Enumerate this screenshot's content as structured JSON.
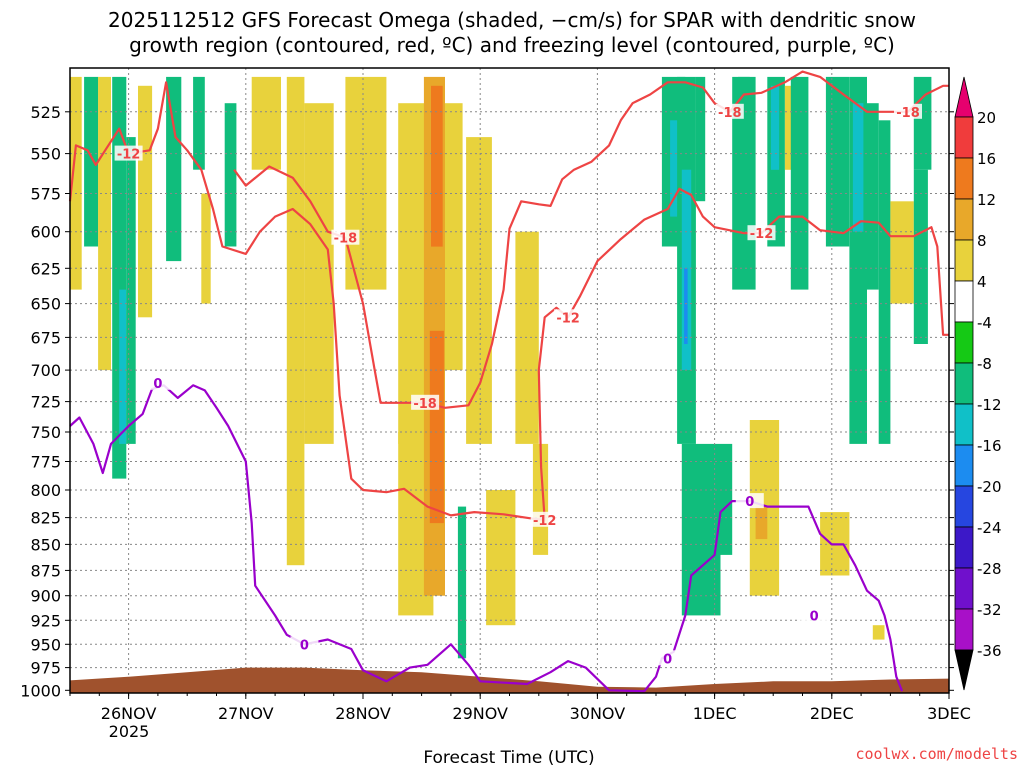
{
  "title": {
    "line1": "2025112512 GFS Forecast Omega (shaded, −cm/s) for SPAR with dendritic snow",
    "line2": "growth region (contoured, red, ºC) and freezing level (contoured, purple, ºC)"
  },
  "credit": "coolwx.com/modelts",
  "colors": {
    "dgz_contour": "#ee4444",
    "freezing_contour": "#9a00cc",
    "terrain": "#a0522d",
    "grid": "#888888"
  },
  "chart_data": {
    "type": "heatmap",
    "title": "2025112512 GFS Forecast Omega (shaded, −cm/s) for SPAR with dendritic snow growth region (contoured, red, ºC) and freezing level (contoured, purple, ºC)",
    "xlabel": "Forecast Time (UTC)",
    "ylabel": "",
    "x_ticks": [
      "26NOV",
      "27NOV",
      "28NOV",
      "29NOV",
      "30NOV",
      "1DEC",
      "2DEC",
      "3DEC"
    ],
    "x_sublabel": "2025",
    "xlim_days": [
      25.5,
      33.0
    ],
    "y_ticks": [
      525,
      550,
      575,
      600,
      625,
      650,
      675,
      700,
      725,
      750,
      775,
      800,
      825,
      850,
      875,
      900,
      925,
      950,
      975,
      1000
    ],
    "ylim_hpa": [
      1003,
      500
    ],
    "y_scale": "log-pressure",
    "grid": true,
    "colorbar": {
      "ticks": [
        20,
        16,
        12,
        8,
        4,
        -4,
        -8,
        -12,
        -16,
        -20,
        -24,
        -28,
        -32,
        -36
      ],
      "colors": [
        "#e6006e",
        "#f03c3c",
        "#ee7a1e",
        "#e8a82a",
        "#e8d23c",
        "#ffffff",
        "#15c915",
        "#10bd7c",
        "#10c0c8",
        "#1c8cf0",
        "#2646e0",
        "#3c18c8",
        "#7010cc",
        "#a810c8",
        "#a0a0a0",
        "#000000"
      ]
    },
    "shaded_regions": [
      {
        "omega": 6,
        "t0": 25.5,
        "t1": 25.6,
        "p0": 505,
        "p1": 640
      },
      {
        "omega": -10,
        "t0": 25.62,
        "t1": 25.74,
        "p0": 505,
        "p1": 610
      },
      {
        "omega": 6,
        "t0": 25.74,
        "t1": 25.85,
        "p0": 505,
        "p1": 700
      },
      {
        "omega": -8,
        "t0": 25.86,
        "t1": 25.98,
        "p0": 505,
        "p1": 790
      },
      {
        "omega": -14,
        "t0": 25.92,
        "t1": 25.98,
        "p0": 640,
        "p1": 760
      },
      {
        "omega": -10,
        "t0": 25.98,
        "t1": 26.06,
        "p0": 540,
        "p1": 760
      },
      {
        "omega": 6,
        "t0": 26.08,
        "t1": 26.2,
        "p0": 510,
        "p1": 660
      },
      {
        "omega": -10,
        "t0": 26.32,
        "t1": 26.45,
        "p0": 505,
        "p1": 620
      },
      {
        "omega": -8,
        "t0": 26.55,
        "t1": 26.65,
        "p0": 505,
        "p1": 560
      },
      {
        "omega": 6,
        "t0": 26.62,
        "t1": 26.7,
        "p0": 575,
        "p1": 650
      },
      {
        "omega": -8,
        "t0": 26.82,
        "t1": 26.92,
        "p0": 520,
        "p1": 610
      },
      {
        "omega": 6,
        "t0": 27.05,
        "t1": 27.3,
        "p0": 505,
        "p1": 560
      },
      {
        "omega": 6,
        "t0": 27.35,
        "t1": 27.5,
        "p0": 505,
        "p1": 870
      },
      {
        "omega": 6,
        "t0": 27.5,
        "t1": 27.75,
        "p0": 520,
        "p1": 760
      },
      {
        "omega": 6,
        "t0": 27.85,
        "t1": 28.2,
        "p0": 505,
        "p1": 640
      },
      {
        "omega": 6,
        "t0": 28.3,
        "t1": 28.55,
        "p0": 520,
        "p1": 760
      },
      {
        "omega": 6,
        "t0": 28.3,
        "t1": 28.6,
        "p0": 750,
        "p1": 920
      },
      {
        "omega": 8,
        "t0": 28.52,
        "t1": 28.7,
        "p0": 505,
        "p1": 900
      },
      {
        "omega": 12,
        "t0": 28.58,
        "t1": 28.68,
        "p0": 510,
        "p1": 610
      },
      {
        "omega": 12,
        "t0": 28.57,
        "t1": 28.69,
        "p0": 670,
        "p1": 830
      },
      {
        "omega": 6,
        "t0": 28.7,
        "t1": 28.85,
        "p0": 520,
        "p1": 700
      },
      {
        "omega": -10,
        "t0": 28.81,
        "t1": 28.88,
        "p0": 815,
        "p1": 965
      },
      {
        "omega": 6,
        "t0": 28.88,
        "t1": 29.1,
        "p0": 540,
        "p1": 760
      },
      {
        "omega": 6,
        "t0": 29.05,
        "t1": 29.3,
        "p0": 800,
        "p1": 930
      },
      {
        "omega": 6,
        "t0": 29.3,
        "t1": 29.5,
        "p0": 600,
        "p1": 760
      },
      {
        "omega": 6,
        "t0": 29.45,
        "t1": 29.58,
        "p0": 760,
        "p1": 860
      },
      {
        "omega": -8,
        "t0": 30.55,
        "t1": 30.75,
        "p0": 505,
        "p1": 610
      },
      {
        "omega": -12,
        "t0": 30.62,
        "t1": 30.72,
        "p0": 530,
        "p1": 590
      },
      {
        "omega": -10,
        "t0": 30.68,
        "t1": 30.84,
        "p0": 505,
        "p1": 760
      },
      {
        "omega": -14,
        "t0": 30.72,
        "t1": 30.8,
        "p0": 560,
        "p1": 700
      },
      {
        "omega": -16,
        "t0": 30.74,
        "t1": 30.77,
        "p0": 625,
        "p1": 680
      },
      {
        "omega": -10,
        "t0": 30.84,
        "t1": 30.92,
        "p0": 505,
        "p1": 580
      },
      {
        "omega": -8,
        "t0": 30.72,
        "t1": 31.05,
        "p0": 760,
        "p1": 920
      },
      {
        "omega": -10,
        "t0": 30.74,
        "t1": 30.84,
        "p0": 820,
        "p1": 860
      },
      {
        "omega": -8,
        "t0": 31.05,
        "t1": 31.15,
        "p0": 760,
        "p1": 860
      },
      {
        "omega": -8,
        "t0": 31.15,
        "t1": 31.35,
        "p0": 505,
        "p1": 640
      },
      {
        "omega": -10,
        "t0": 31.2,
        "t1": 31.3,
        "p0": 505,
        "p1": 560
      },
      {
        "omega": 6,
        "t0": 31.3,
        "t1": 31.55,
        "p0": 740,
        "p1": 900
      },
      {
        "omega": 8,
        "t0": 31.35,
        "t1": 31.45,
        "p0": 815,
        "p1": 845
      },
      {
        "omega": -10,
        "t0": 31.45,
        "t1": 31.6,
        "p0": 505,
        "p1": 610
      },
      {
        "omega": -14,
        "t0": 31.48,
        "t1": 31.55,
        "p0": 510,
        "p1": 560
      },
      {
        "omega": 6,
        "t0": 31.6,
        "t1": 31.7,
        "p0": 510,
        "p1": 560
      },
      {
        "omega": -8,
        "t0": 31.65,
        "t1": 31.8,
        "p0": 505,
        "p1": 640
      },
      {
        "omega": -8,
        "t0": 31.95,
        "t1": 32.15,
        "p0": 505,
        "p1": 610
      },
      {
        "omega": -10,
        "t0": 32.15,
        "t1": 32.3,
        "p0": 505,
        "p1": 760
      },
      {
        "omega": -14,
        "t0": 32.18,
        "t1": 32.27,
        "p0": 520,
        "p1": 600
      },
      {
        "omega": 6,
        "t0": 31.9,
        "t1": 32.15,
        "p0": 820,
        "p1": 880
      },
      {
        "omega": -8,
        "t0": 32.3,
        "t1": 32.4,
        "p0": 520,
        "p1": 640
      },
      {
        "omega": -8,
        "t0": 32.4,
        "t1": 32.5,
        "p0": 530,
        "p1": 760
      },
      {
        "omega": 6,
        "t0": 32.35,
        "t1": 32.45,
        "p0": 930,
        "p1": 945
      },
      {
        "omega": 6,
        "t0": 32.5,
        "t1": 32.7,
        "p0": 580,
        "p1": 650
      },
      {
        "omega": -10,
        "t0": 32.7,
        "t1": 32.85,
        "p0": 505,
        "p1": 560
      },
      {
        "omega": -8,
        "t0": 32.7,
        "t1": 32.82,
        "p0": 560,
        "p1": 680
      }
    ],
    "contours": [
      {
        "label": "-12",
        "color": "dgz",
        "label_points": [
          [
            26.0,
            550
          ],
          [
            29.55,
            827
          ],
          [
            29.75,
            660
          ],
          [
            31.4,
            601
          ]
        ],
        "points": [
          [
            25.5,
            580
          ],
          [
            25.55,
            545
          ],
          [
            25.65,
            548
          ],
          [
            25.72,
            557
          ],
          [
            25.8,
            548
          ],
          [
            25.92,
            535
          ],
          [
            26.0,
            550
          ],
          [
            26.18,
            548
          ],
          [
            26.25,
            535
          ],
          [
            26.32,
            508
          ],
          [
            26.4,
            540
          ],
          [
            26.5,
            548
          ],
          [
            26.62,
            560
          ],
          [
            26.72,
            585
          ],
          [
            26.8,
            610
          ],
          [
            27.0,
            615
          ],
          [
            27.12,
            600
          ],
          [
            27.25,
            590
          ],
          [
            27.4,
            585
          ],
          [
            27.55,
            595
          ],
          [
            27.7,
            612
          ],
          [
            27.75,
            650
          ],
          [
            27.8,
            720
          ],
          [
            27.9,
            790
          ],
          [
            28.0,
            800
          ],
          [
            28.2,
            802
          ],
          [
            28.35,
            799
          ],
          [
            28.55,
            815
          ],
          [
            28.75,
            823
          ],
          [
            28.95,
            820
          ],
          [
            29.2,
            822
          ],
          [
            29.45,
            826
          ],
          [
            29.55,
            827
          ],
          [
            29.52,
            780
          ],
          [
            29.5,
            700
          ],
          [
            29.55,
            660
          ],
          [
            29.65,
            653
          ],
          [
            29.75,
            660
          ],
          [
            29.85,
            645
          ],
          [
            30.0,
            620
          ],
          [
            30.2,
            605
          ],
          [
            30.4,
            592
          ],
          [
            30.6,
            585
          ],
          [
            30.7,
            572
          ],
          [
            30.8,
            576
          ],
          [
            30.9,
            590
          ],
          [
            31.0,
            597
          ],
          [
            31.25,
            601
          ],
          [
            31.4,
            601
          ],
          [
            31.55,
            590
          ],
          [
            31.75,
            590
          ],
          [
            31.9,
            599
          ],
          [
            32.1,
            601
          ],
          [
            32.25,
            593
          ],
          [
            32.4,
            594
          ],
          [
            32.5,
            603
          ],
          [
            32.7,
            603
          ],
          [
            32.85,
            597
          ],
          [
            32.9,
            610
          ],
          [
            32.95,
            673
          ],
          [
            33.0,
            673
          ]
        ]
      },
      {
        "label": "-18",
        "color": "dgz",
        "label_points": [
          [
            27.85,
            604
          ],
          [
            28.53,
            726
          ],
          [
            31.13,
            525
          ],
          [
            32.65,
            525
          ]
        ],
        "points": [
          [
            26.9,
            560
          ],
          [
            27.0,
            570
          ],
          [
            27.2,
            558
          ],
          [
            27.4,
            565
          ],
          [
            27.55,
            580
          ],
          [
            27.7,
            600
          ],
          [
            27.85,
            604
          ],
          [
            28.0,
            650
          ],
          [
            28.1,
            700
          ],
          [
            28.15,
            726
          ],
          [
            28.35,
            726
          ],
          [
            28.53,
            726
          ],
          [
            28.7,
            730
          ],
          [
            28.9,
            728
          ],
          [
            29.0,
            710
          ],
          [
            29.1,
            680
          ],
          [
            29.2,
            640
          ],
          [
            29.25,
            598
          ],
          [
            29.35,
            580
          ],
          [
            29.5,
            582
          ],
          [
            29.6,
            583
          ],
          [
            29.7,
            566
          ],
          [
            29.8,
            560
          ],
          [
            29.95,
            555
          ],
          [
            30.1,
            545
          ],
          [
            30.2,
            530
          ],
          [
            30.3,
            520
          ],
          [
            30.45,
            515
          ],
          [
            30.6,
            508
          ],
          [
            30.75,
            508
          ],
          [
            30.9,
            511
          ],
          [
            31.0,
            520
          ],
          [
            31.13,
            525
          ],
          [
            31.25,
            515
          ],
          [
            31.4,
            514
          ],
          [
            31.6,
            508
          ],
          [
            31.75,
            502
          ],
          [
            31.9,
            505
          ],
          [
            32.1,
            515
          ],
          [
            32.3,
            525
          ],
          [
            32.5,
            525
          ],
          [
            32.65,
            525
          ],
          [
            32.8,
            515
          ],
          [
            32.95,
            510
          ],
          [
            33.0,
            510
          ]
        ]
      },
      {
        "label": "0",
        "color": "freezing",
        "label_points": [
          [
            26.25,
            710
          ],
          [
            27.5,
            950
          ],
          [
            30.6,
            965
          ],
          [
            31.3,
            810
          ],
          [
            31.85,
            920
          ]
        ],
        "points": [
          [
            25.5,
            745
          ],
          [
            25.58,
            738
          ],
          [
            25.7,
            760
          ],
          [
            25.78,
            785
          ],
          [
            25.85,
            760
          ],
          [
            26.0,
            745
          ],
          [
            26.12,
            735
          ],
          [
            26.2,
            715
          ],
          [
            26.3,
            712
          ],
          [
            26.42,
            722
          ],
          [
            26.55,
            712
          ],
          [
            26.65,
            716
          ],
          [
            26.75,
            730
          ],
          [
            26.85,
            745
          ],
          [
            27.0,
            775
          ],
          [
            27.05,
            830
          ],
          [
            27.08,
            890
          ],
          [
            27.25,
            920
          ],
          [
            27.35,
            940
          ],
          [
            27.5,
            950
          ],
          [
            27.7,
            945
          ],
          [
            27.9,
            955
          ],
          [
            28.0,
            978
          ],
          [
            28.2,
            990
          ],
          [
            28.4,
            975
          ],
          [
            28.55,
            972
          ],
          [
            28.75,
            950
          ],
          [
            28.9,
            972
          ],
          [
            29.0,
            990
          ],
          [
            29.4,
            993
          ],
          [
            29.6,
            980
          ],
          [
            29.75,
            968
          ],
          [
            29.9,
            975
          ],
          [
            30.1,
            1000
          ],
          [
            30.4,
            1001
          ],
          [
            30.5,
            985
          ],
          [
            30.55,
            965
          ],
          [
            30.65,
            958
          ],
          [
            30.75,
            920
          ],
          [
            30.8,
            880
          ],
          [
            31.0,
            860
          ],
          [
            31.05,
            820
          ],
          [
            31.15,
            810
          ],
          [
            31.3,
            810
          ],
          [
            31.45,
            815
          ],
          [
            31.6,
            815
          ],
          [
            31.8,
            815
          ],
          [
            31.9,
            840
          ],
          [
            32.0,
            850
          ],
          [
            32.1,
            850
          ],
          [
            32.2,
            870
          ],
          [
            32.3,
            895
          ],
          [
            32.4,
            905
          ],
          [
            32.45,
            920
          ],
          [
            32.5,
            945
          ],
          [
            32.55,
            985
          ],
          [
            32.6,
            1001
          ]
        ]
      }
    ],
    "terrain_surface": [
      [
        25.5,
        989
      ],
      [
        26.0,
        985
      ],
      [
        26.5,
        980
      ],
      [
        27.0,
        975
      ],
      [
        27.5,
        975
      ],
      [
        28.0,
        978
      ],
      [
        28.5,
        980
      ],
      [
        29.0,
        985
      ],
      [
        29.5,
        990
      ],
      [
        30.0,
        996
      ],
      [
        30.5,
        997
      ],
      [
        31.0,
        993
      ],
      [
        31.5,
        990
      ],
      [
        32.0,
        990
      ],
      [
        32.5,
        988
      ],
      [
        33.0,
        987
      ]
    ]
  }
}
